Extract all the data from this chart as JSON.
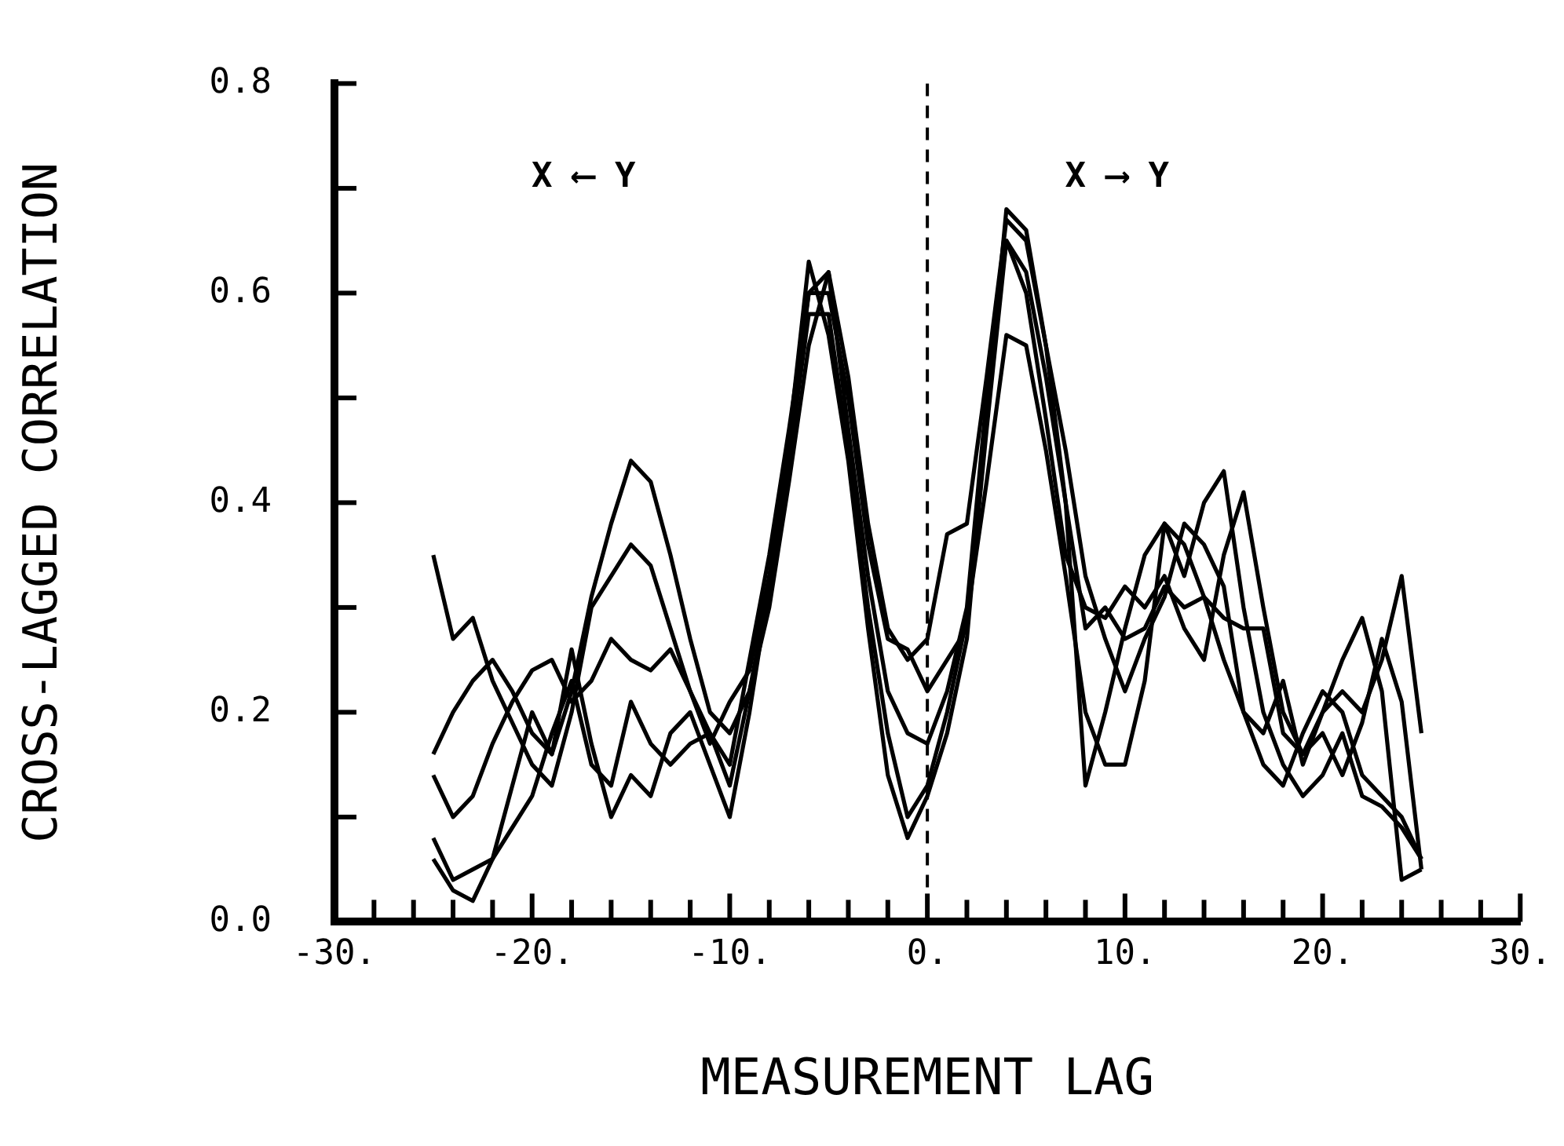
{
  "chart_data": {
    "type": "line",
    "xlabel": "MEASUREMENT LAG",
    "ylabel": "CROSS-LAGGED CORRELATION",
    "annotations": [
      "X ⟵ Y",
      "X ⟶ Y"
    ],
    "x": [
      -25,
      -24,
      -23,
      -22,
      -21,
      -20,
      -19,
      -18,
      -17,
      -16,
      -15,
      -14,
      -13,
      -12,
      -11,
      -10,
      -9,
      -8,
      -7,
      -6,
      -5,
      -4,
      -3,
      -2,
      -1,
      0,
      1,
      2,
      3,
      4,
      5,
      6,
      7,
      8,
      9,
      10,
      11,
      12,
      13,
      14,
      15,
      16,
      17,
      18,
      19,
      20,
      21,
      22,
      23,
      24,
      25
    ],
    "series": [
      {
        "color": "#000000",
        "values": [
          0.16,
          0.2,
          0.23,
          0.25,
          0.22,
          0.18,
          0.16,
          0.22,
          0.31,
          0.38,
          0.44,
          0.42,
          0.35,
          0.27,
          0.2,
          0.18,
          0.22,
          0.3,
          0.42,
          0.55,
          0.62,
          0.52,
          0.38,
          0.28,
          0.25,
          0.27,
          0.37,
          0.38,
          0.52,
          0.67,
          0.65,
          0.55,
          0.4,
          0.28,
          0.3,
          0.27,
          0.28,
          0.32,
          0.3,
          0.31,
          0.29,
          0.28,
          0.28,
          0.18,
          0.16,
          0.2,
          0.22,
          0.2,
          0.25,
          0.33,
          0.18
        ]
      },
      {
        "color": "#000000",
        "values": [
          0.35,
          0.27,
          0.29,
          0.23,
          0.19,
          0.15,
          0.13,
          0.2,
          0.3,
          0.33,
          0.36,
          0.34,
          0.28,
          0.22,
          0.17,
          0.21,
          0.24,
          0.33,
          0.45,
          0.6,
          0.6,
          0.5,
          0.36,
          0.27,
          0.26,
          0.22,
          0.25,
          0.28,
          0.47,
          0.65,
          0.62,
          0.52,
          0.4,
          0.13,
          0.2,
          0.28,
          0.35,
          0.38,
          0.36,
          0.31,
          0.25,
          0.2,
          0.15,
          0.13,
          0.18,
          0.22,
          0.2,
          0.14,
          0.12,
          0.1,
          0.06
        ]
      },
      {
        "color": "#000000",
        "values": [
          0.14,
          0.1,
          0.12,
          0.17,
          0.21,
          0.24,
          0.25,
          0.21,
          0.23,
          0.27,
          0.25,
          0.24,
          0.26,
          0.22,
          0.18,
          0.15,
          0.25,
          0.35,
          0.47,
          0.6,
          0.62,
          0.47,
          0.33,
          0.22,
          0.18,
          0.17,
          0.22,
          0.3,
          0.5,
          0.65,
          0.6,
          0.48,
          0.35,
          0.3,
          0.29,
          0.32,
          0.3,
          0.33,
          0.28,
          0.25,
          0.35,
          0.41,
          0.3,
          0.2,
          0.16,
          0.18,
          0.14,
          0.19,
          0.27,
          0.21,
          0.05
        ]
      },
      {
        "color": "#000000",
        "values": [
          0.08,
          0.04,
          0.05,
          0.06,
          0.09,
          0.12,
          0.18,
          0.23,
          0.15,
          0.13,
          0.21,
          0.17,
          0.15,
          0.17,
          0.18,
          0.13,
          0.22,
          0.32,
          0.44,
          0.58,
          0.58,
          0.45,
          0.3,
          0.18,
          0.1,
          0.13,
          0.2,
          0.29,
          0.42,
          0.56,
          0.55,
          0.45,
          0.33,
          0.2,
          0.15,
          0.15,
          0.23,
          0.38,
          0.33,
          0.4,
          0.43,
          0.3,
          0.2,
          0.15,
          0.12,
          0.14,
          0.18,
          0.12,
          0.11,
          0.09,
          0.06
        ]
      },
      {
        "color": "#000000",
        "values": [
          0.06,
          0.03,
          0.02,
          0.06,
          0.13,
          0.2,
          0.16,
          0.26,
          0.17,
          0.1,
          0.14,
          0.12,
          0.18,
          0.2,
          0.15,
          0.1,
          0.2,
          0.32,
          0.46,
          0.63,
          0.56,
          0.44,
          0.28,
          0.14,
          0.08,
          0.12,
          0.18,
          0.27,
          0.48,
          0.68,
          0.66,
          0.55,
          0.45,
          0.33,
          0.27,
          0.22,
          0.27,
          0.31,
          0.38,
          0.36,
          0.32,
          0.2,
          0.18,
          0.23,
          0.15,
          0.2,
          0.25,
          0.29,
          0.22,
          0.04,
          0.05
        ]
      }
    ],
    "xlim": [
      -30,
      30
    ],
    "xticks": [
      {
        "value": -30,
        "label": "-30."
      },
      {
        "value": -28,
        "label": null
      },
      {
        "value": -26,
        "label": null
      },
      {
        "value": -24,
        "label": null
      },
      {
        "value": -22,
        "label": null
      },
      {
        "value": -20,
        "label": "-20."
      },
      {
        "value": -18,
        "label": null
      },
      {
        "value": -16,
        "label": null
      },
      {
        "value": -14,
        "label": null
      },
      {
        "value": -12,
        "label": null
      },
      {
        "value": -10,
        "label": "-10."
      },
      {
        "value": -8,
        "label": null
      },
      {
        "value": -6,
        "label": null
      },
      {
        "value": -4,
        "label": null
      },
      {
        "value": -2,
        "label": null
      },
      {
        "value": 0,
        "label": "0."
      },
      {
        "value": 2,
        "label": null
      },
      {
        "value": 4,
        "label": null
      },
      {
        "value": 6,
        "label": null
      },
      {
        "value": 8,
        "label": null
      },
      {
        "value": 10,
        "label": "10."
      },
      {
        "value": 12,
        "label": null
      },
      {
        "value": 14,
        "label": null
      },
      {
        "value": 16,
        "label": null
      },
      {
        "value": 18,
        "label": null
      },
      {
        "value": 20,
        "label": "20."
      },
      {
        "value": 22,
        "label": null
      },
      {
        "value": 24,
        "label": null
      },
      {
        "value": 26,
        "label": null
      },
      {
        "value": 28,
        "label": null
      },
      {
        "value": 30,
        "label": "30."
      }
    ],
    "ylim": [
      0,
      0.8
    ],
    "yticks": [
      {
        "value": 0,
        "label": "0.0"
      },
      {
        "value": 0.1,
        "label": null
      },
      {
        "value": 0.2,
        "label": "0.2"
      },
      {
        "value": 0.3,
        "label": null
      },
      {
        "value": 0.4,
        "label": "0.4"
      },
      {
        "value": 0.5,
        "label": null
      },
      {
        "value": 0.6,
        "label": "0.6"
      },
      {
        "value": 0.7,
        "label": null
      },
      {
        "value": 0.8,
        "label": "0.8"
      }
    ],
    "ref_lines": [
      {
        "axis": "x",
        "value": 0,
        "line_style": "dashed",
        "color": "#000000"
      }
    ],
    "grid": false,
    "legend": false,
    "marker": "none",
    "line_style": "solid"
  }
}
